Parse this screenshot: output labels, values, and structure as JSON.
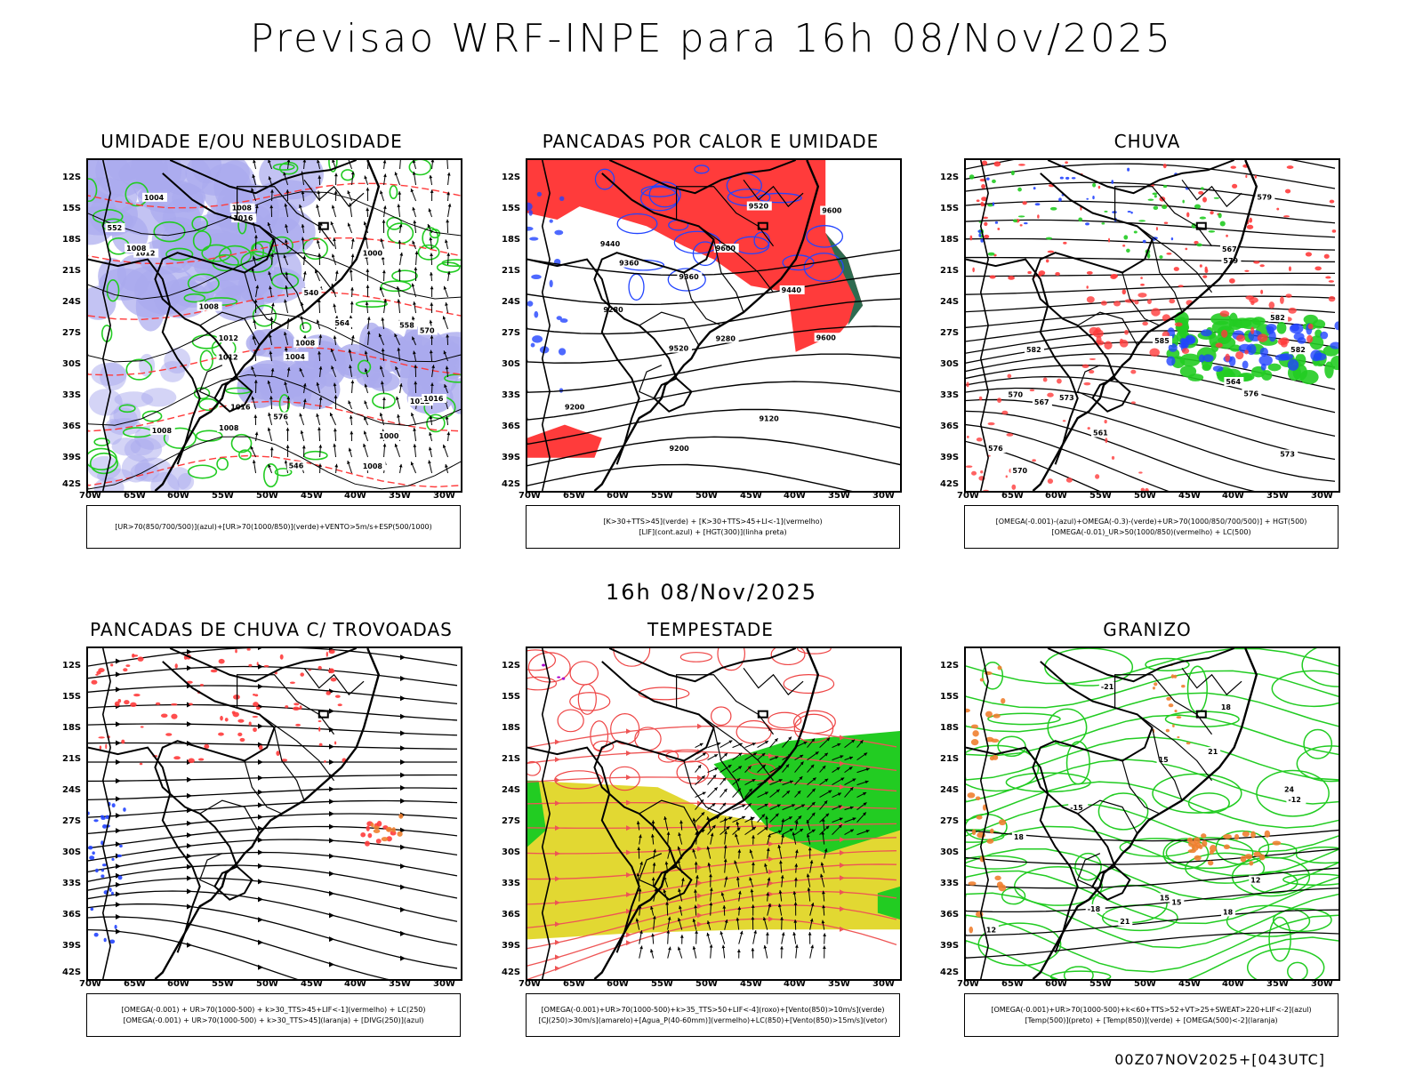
{
  "main_title": "Previsao WRF-INPE  para 16h 08/Nov/2025",
  "mid_title": "16h 08/Nov/2025",
  "footer": "00Z07NOV2025+[043UTC]",
  "lat_labels": [
    "12S",
    "15S",
    "18S",
    "21S",
    "24S",
    "27S",
    "30S",
    "33S",
    "36S",
    "39S",
    "42S"
  ],
  "lon_labels": [
    "70W",
    "65W",
    "60W",
    "55W",
    "50W",
    "45W",
    "40W",
    "35W",
    "30W"
  ],
  "panels": [
    {
      "title": "UMIDADE E/OU NEBULOSIDADE",
      "legend": [
        "[UR>70(850/700/500)](azul)+[UR>70(1000/850)](verde)+VENTO>5m/s+ESP(500/1000)"
      ]
    },
    {
      "title": "PANCADAS POR CALOR E UMIDADE",
      "legend": [
        "[K>30+TTS>45](verde) + [K>30+TTS>45+LI<-1](vermelho)",
        "[LIF](cont.azul) + [HGT(300)](linha preta)"
      ]
    },
    {
      "title": "CHUVA",
      "legend": [
        "[OMEGA(-0.001)-(azul)+OMEGA(-0.3)-(verde)+UR>70(1000/850/700/500)] + HGT(500)",
        "[OMEGA(-0.01)_UR>50(1000/850)(vermelho) + LC(500)"
      ]
    },
    {
      "title": "PANCADAS DE CHUVA C/ TROVOADAS",
      "legend": [
        "[OMEGA(-0.001) + UR>70(1000-500) + k>30_TTS>45+LIF<-1](vermelho) + LC(250)",
        "[OMEGA(-0.001) + UR>70(1000-500) + k>30_TTS>45](laranja) + [DIVG(250)](azul)"
      ]
    },
    {
      "title": "TEMPESTADE",
      "legend": [
        "[OMEGA(-0.001)+UR>70(1000-500)+k>35_TTS>50+LIF<-4](roxo)+[Vento(850)>10m/s](verde)",
        "[CJ(250)>30m/s](amarelo)+[Agua_P(40-60mm)](vermelho)+LC(850)+[Vento(850)>15m/s](vetor)"
      ]
    },
    {
      "title": "GRANIZO",
      "legend": [
        "[OMEGA(-0.001)+UR>70(1000-500)+k<60+TTS>52+VT>25+SWEAT>220+LIF<-2](azul)",
        "[Temp(500)](preto) + [Temp(850)](verde) + [OMEGA(500)<-2](laranja)"
      ]
    }
  ],
  "contour_labels": {
    "p1": [
      "1012",
      "1008",
      "1008",
      "1008",
      "1008",
      "1012",
      "1004",
      "1000",
      "1016",
      "1016",
      "1012",
      "1008",
      "1016",
      "1000",
      "1008",
      "1004",
      "1012",
      "1008",
      "576",
      "570",
      "564",
      "558",
      "552",
      "546",
      "540"
    ],
    "p2": [
      "9520",
      "9600",
      "9440",
      "9360",
      "9280",
      "9200",
      "9520",
      "9600",
      "9440",
      "9360",
      "9280",
      "9200",
      "9120",
      "9600"
    ],
    "p3": [
      "582",
      "579",
      "576",
      "573",
      "570",
      "567",
      "564",
      "561",
      "579",
      "576",
      "573",
      "570",
      "567",
      "582",
      "585",
      "582"
    ],
    "p6": [
      "12",
      "15",
      "18",
      "21",
      "15",
      "18",
      "12",
      "-12",
      "-15",
      "15",
      "18",
      "21",
      "24",
      "-21",
      "-18"
    ]
  },
  "colors": {
    "blue_fill": "#aaaaee",
    "green": "#22cc22",
    "red": "#ff3b3b",
    "dark_green": "#2e6b50",
    "yellow": "#e2d832",
    "orange": "#f08030",
    "blue": "#2244ff",
    "purple": "#aa00cc"
  }
}
